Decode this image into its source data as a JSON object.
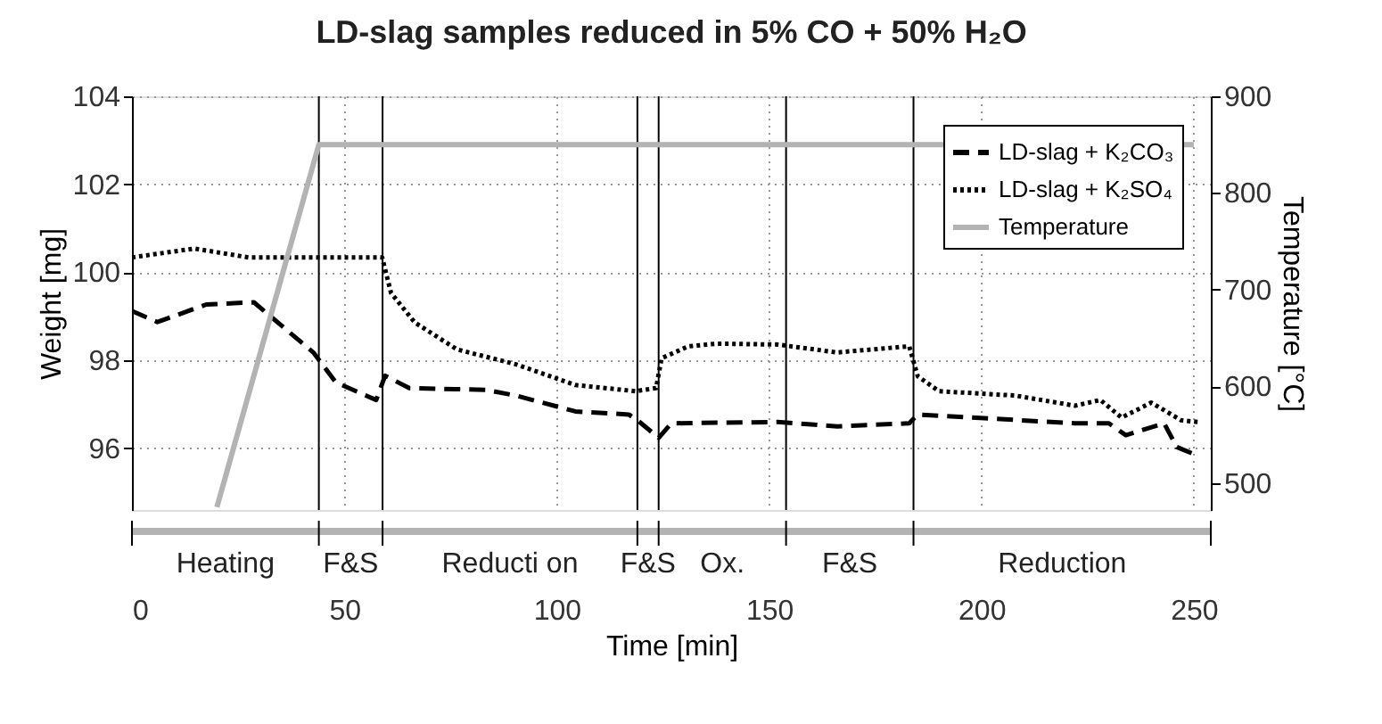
{
  "chart_data": {
    "type": "line",
    "title": "LD-slag samples reduced in 5% CO + 50% H₂O",
    "xlabel": "Time [min]",
    "ylabel": "Weight [mg]",
    "y2label": "Temperature [°C]",
    "xlim": [
      0,
      254
    ],
    "xticks": [
      0,
      50,
      100,
      150,
      200,
      250
    ],
    "ylim": [
      94.6,
      104
    ],
    "yticks": [
      96,
      98,
      100,
      102,
      104
    ],
    "y2lim": [
      472,
      900
    ],
    "y2ticks": [
      500,
      600,
      700,
      800,
      900
    ],
    "grid": true,
    "legend": "top right",
    "series": [
      {
        "name": "LD-slag + K₂CO₃",
        "color": "#000000",
        "line_style": "dashed",
        "x": [
          0,
          6,
          17.5,
          28.7,
          42.7,
          48,
          57.5,
          59.6,
          65.3,
          83.4,
          90.4,
          104.4,
          117,
          119.5,
          124,
          127,
          152,
          166,
          183,
          185,
          222,
          230,
          234,
          243,
          246,
          251
        ],
        "values": [
          99.12,
          98.87,
          99.27,
          99.32,
          98.18,
          97.5,
          97.1,
          97.65,
          97.37,
          97.33,
          97.2,
          96.84,
          96.77,
          96.6,
          96.24,
          96.57,
          96.6,
          96.5,
          96.57,
          96.77,
          96.57,
          96.57,
          96.3,
          96.57,
          96.03,
          95.83
        ]
      },
      {
        "name": "LD-slag + K₂SO₄",
        "color": "#000000",
        "line_style": "dotted",
        "x": [
          0,
          14.7,
          27.4,
          43,
          58.9,
          61,
          66.6,
          76.5,
          90.4,
          104.4,
          118.5,
          123.4,
          124.7,
          131,
          137.7,
          152,
          166,
          183,
          185,
          190,
          208,
          222,
          228,
          233,
          240,
          247,
          251
        ],
        "values": [
          100.34,
          100.54,
          100.34,
          100.34,
          100.34,
          99.53,
          98.86,
          98.25,
          97.91,
          97.44,
          97.3,
          97.37,
          98.05,
          98.32,
          98.38,
          98.36,
          98.18,
          98.32,
          97.64,
          97.3,
          97.2,
          96.97,
          97.1,
          96.7,
          97.04,
          96.64,
          96.6
        ]
      },
      {
        "name": "Temperature",
        "color": "#b3b3b3",
        "line_style": "solid",
        "axis": "y2",
        "x": [
          20,
          44,
          250
        ],
        "values": [
          475,
          850,
          850
        ]
      }
    ],
    "ref_lines": [
      {
        "axis": "x",
        "value": 44
      },
      {
        "axis": "x",
        "value": 59
      },
      {
        "axis": "x",
        "value": 119
      },
      {
        "axis": "x",
        "value": 124
      },
      {
        "axis": "x",
        "value": 154
      },
      {
        "axis": "x",
        "value": 184
      }
    ],
    "annotations": [
      "Heating",
      "F&S",
      "Reducti on",
      "F&S",
      "Ox.",
      "F&S",
      "Reduction"
    ]
  }
}
